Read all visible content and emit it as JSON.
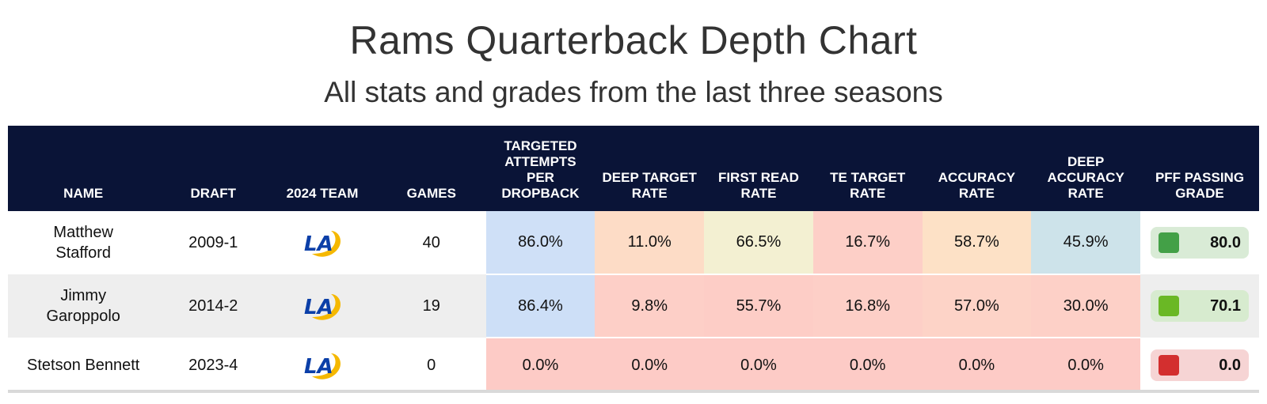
{
  "title": "Rams Quarterback Depth Chart",
  "subtitle": "All stats and grades from the last three seasons",
  "columns": {
    "name": "NAME",
    "draft": "DRAFT",
    "team": "2024 TEAM",
    "games": "GAMES",
    "targeted": "TARGETED ATTEMPTS PER DROPBACK",
    "deep_target": "DEEP TARGET RATE",
    "first_read": "FIRST READ RATE",
    "te_target": "TE TARGET RATE",
    "accuracy": "ACCURACY RATE",
    "deep_accuracy": "DEEP ACCURACY RATE",
    "pff_grade": "PFF PASSING GRADE"
  },
  "team_logo": {
    "icon": "rams-la-logo-icon",
    "text": "LA",
    "colors": {
      "blue": "#0b3fa8",
      "gold": "#f5b800"
    }
  },
  "rows": [
    {
      "name": "Matthew Stafford",
      "draft": "2009-1",
      "games": "40",
      "targeted": "86.0%",
      "deep_target": "11.0%",
      "first_read": "66.5%",
      "te_target": "16.7%",
      "accuracy": "58.7%",
      "deep_accuracy": "45.9%",
      "pff_grade": "80.0",
      "colors": {
        "targeted": "#cfe0f7",
        "deep_target": "#fddcc6",
        "first_read": "#f3f0d2",
        "te_target": "#fdcfc7",
        "accuracy": "#fde1c6",
        "deep_accuracy": "#cde3ea",
        "grade_bg": "#d9ebd6",
        "grade_box": "#43a047"
      }
    },
    {
      "name": "Jimmy Garoppolo",
      "draft": "2014-2",
      "games": "19",
      "targeted": "86.4%",
      "deep_target": "9.8%",
      "first_read": "55.7%",
      "te_target": "16.8%",
      "accuracy": "57.0%",
      "deep_accuracy": "30.0%",
      "pff_grade": "70.1",
      "colors": {
        "targeted": "#cddff7",
        "deep_target": "#fdcfc7",
        "first_read": "#fdcdc6",
        "te_target": "#fdcfc7",
        "accuracy": "#fdd3c7",
        "deep_accuracy": "#fdd0c7",
        "grade_bg": "#d7ebcf",
        "grade_box": "#6ab825"
      }
    },
    {
      "name": "Stetson Bennett",
      "draft": "2023-4",
      "games": "0",
      "targeted": "0.0%",
      "deep_target": "0.0%",
      "first_read": "0.0%",
      "te_target": "0.0%",
      "accuracy": "0.0%",
      "deep_accuracy": "0.0%",
      "pff_grade": "0.0",
      "colors": {
        "targeted": "#fdcbc6",
        "deep_target": "#fdcbc6",
        "first_read": "#fdcbc6",
        "te_target": "#fdcbc6",
        "accuracy": "#fdcbc6",
        "deep_accuracy": "#fdcbc6",
        "grade_bg": "#f6d4d4",
        "grade_box": "#d32f2f"
      }
    }
  ]
}
